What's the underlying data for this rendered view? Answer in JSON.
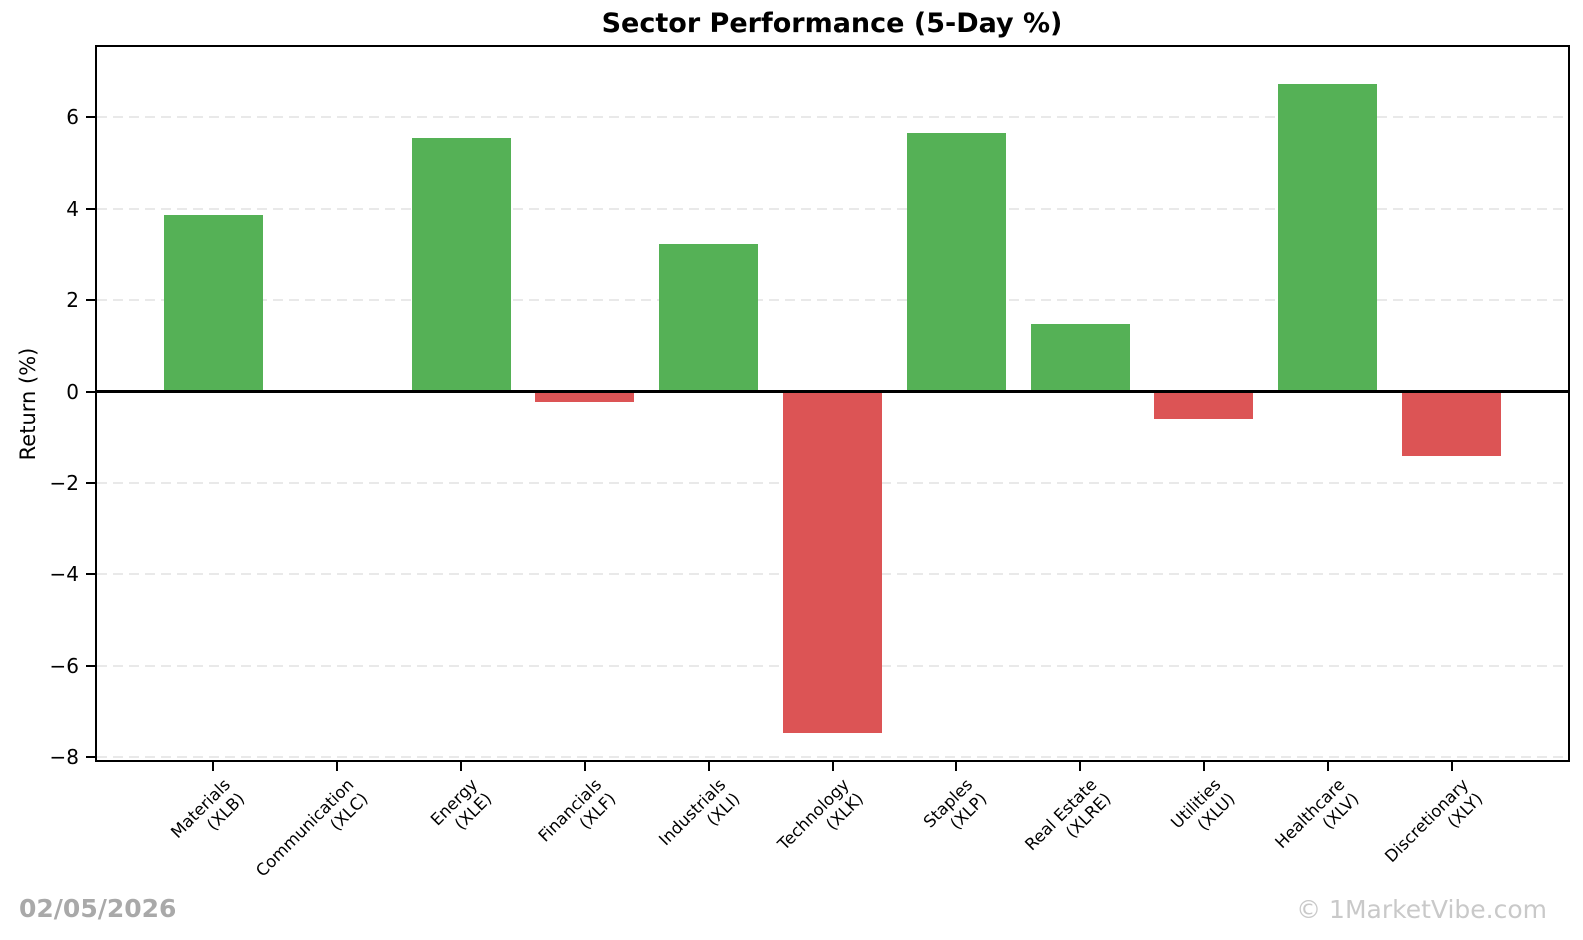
{
  "chart_data": {
    "type": "bar",
    "title": "Sector Performance (5-Day %)",
    "ylabel": "Return (%)",
    "categories": [
      "Materials\n(XLB)",
      "Communication\n(XLC)",
      "Energy\n(XLE)",
      "Financials\n(XLF)",
      "Industrials\n(XLI)",
      "Technology\n(XLK)",
      "Staples\n(XLP)",
      "Real Estate\n(XLRE)",
      "Utilities\n(XLU)",
      "Healthcare\n(XLV)",
      "Discretionary\n(XLY)"
    ],
    "values": [
      3.87,
      0.04,
      5.55,
      -0.22,
      3.22,
      -7.46,
      5.66,
      1.47,
      -0.59,
      6.73,
      -1.4
    ],
    "yticks": [
      -8,
      -6,
      -4,
      -2,
      0,
      2,
      4,
      6
    ],
    "ylim": [
      -8.06,
      7.54
    ],
    "xlim": [
      -0.94,
      10.94
    ],
    "bar_width": 0.8,
    "grid": true,
    "legend_position": "none",
    "positive_color": "#55b156",
    "negative_color": "#dc5455"
  },
  "footer": {
    "date": "02/05/2026",
    "watermark": "© 1MarketVibe.com"
  },
  "colors": {
    "grid": "#e9e9e9",
    "axis": "#000000",
    "date_text": "#a9a9a9",
    "watermark_text": "#c9c9c9",
    "background": "#ffffff"
  }
}
